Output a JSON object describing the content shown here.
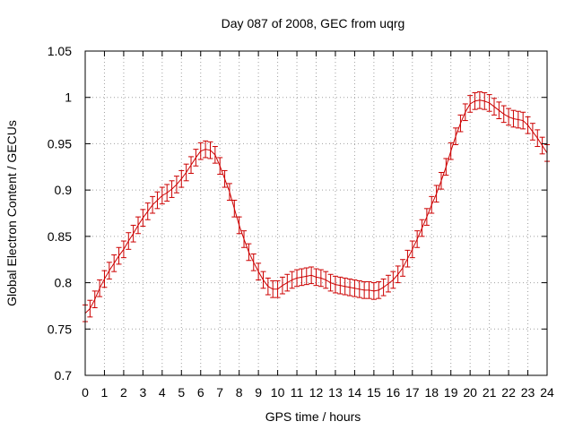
{
  "chart_data": {
    "type": "line",
    "title": "Day 087 of 2008, GEC from uqrg",
    "xlabel": "GPS time / hours",
    "ylabel": "Global Electron Content / GECUs",
    "xlim": [
      0,
      24
    ],
    "ylim": [
      0.7,
      1.05
    ],
    "grid": true,
    "x_ticks": [
      "0",
      "1",
      "2",
      "3",
      "4",
      "5",
      "6",
      "7",
      "8",
      "9",
      "10",
      "11",
      "12",
      "13",
      "14",
      "15",
      "16",
      "17",
      "18",
      "19",
      "20",
      "21",
      "22",
      "23",
      "24"
    ],
    "y_ticks": [
      "0.7",
      "0.75",
      "0.8",
      "0.85",
      "0.9",
      "0.95",
      "1",
      "1.05"
    ],
    "series_color": "#cc0000",
    "error_bar": 0.009,
    "series": [
      {
        "name": "GEC",
        "x": [
          0,
          0.25,
          0.5,
          0.75,
          1,
          1.25,
          1.5,
          1.75,
          2,
          2.25,
          2.5,
          2.75,
          3,
          3.25,
          3.5,
          3.75,
          4,
          4.25,
          4.5,
          4.75,
          5,
          5.25,
          5.5,
          5.75,
          6,
          6.25,
          6.5,
          6.75,
          7,
          7.25,
          7.5,
          7.75,
          8,
          8.25,
          8.5,
          8.75,
          9,
          9.25,
          9.5,
          9.75,
          10,
          10.25,
          10.5,
          10.75,
          11,
          11.25,
          11.5,
          11.75,
          12,
          12.25,
          12.5,
          12.75,
          13,
          13.25,
          13.5,
          13.75,
          14,
          14.25,
          14.5,
          14.75,
          15,
          15.25,
          15.5,
          15.75,
          16,
          16.25,
          16.5,
          16.75,
          17,
          17.25,
          17.5,
          17.75,
          18,
          18.25,
          18.5,
          18.75,
          19,
          19.25,
          19.5,
          19.75,
          20,
          20.25,
          20.5,
          20.75,
          21,
          21.25,
          21.5,
          21.75,
          22,
          22.25,
          22.5,
          22.75,
          23,
          23.25,
          23.5,
          23.75,
          24
        ],
        "values": [
          0.767,
          0.772,
          0.782,
          0.794,
          0.804,
          0.813,
          0.821,
          0.829,
          0.836,
          0.845,
          0.853,
          0.862,
          0.87,
          0.877,
          0.884,
          0.889,
          0.894,
          0.897,
          0.901,
          0.906,
          0.912,
          0.919,
          0.927,
          0.935,
          0.942,
          0.944,
          0.943,
          0.938,
          0.926,
          0.912,
          0.898,
          0.88,
          0.862,
          0.847,
          0.833,
          0.822,
          0.812,
          0.803,
          0.796,
          0.793,
          0.793,
          0.797,
          0.8,
          0.803,
          0.805,
          0.806,
          0.807,
          0.808,
          0.806,
          0.805,
          0.803,
          0.8,
          0.798,
          0.797,
          0.796,
          0.795,
          0.794,
          0.793,
          0.792,
          0.792,
          0.791,
          0.792,
          0.795,
          0.799,
          0.803,
          0.809,
          0.816,
          0.826,
          0.836,
          0.847,
          0.859,
          0.871,
          0.884,
          0.896,
          0.91,
          0.925,
          0.942,
          0.958,
          0.972,
          0.984,
          0.993,
          0.996,
          0.997,
          0.996,
          0.994,
          0.99,
          0.986,
          0.982,
          0.979,
          0.977,
          0.976,
          0.975,
          0.97,
          0.963,
          0.956,
          0.948,
          0.94
        ]
      }
    ]
  }
}
